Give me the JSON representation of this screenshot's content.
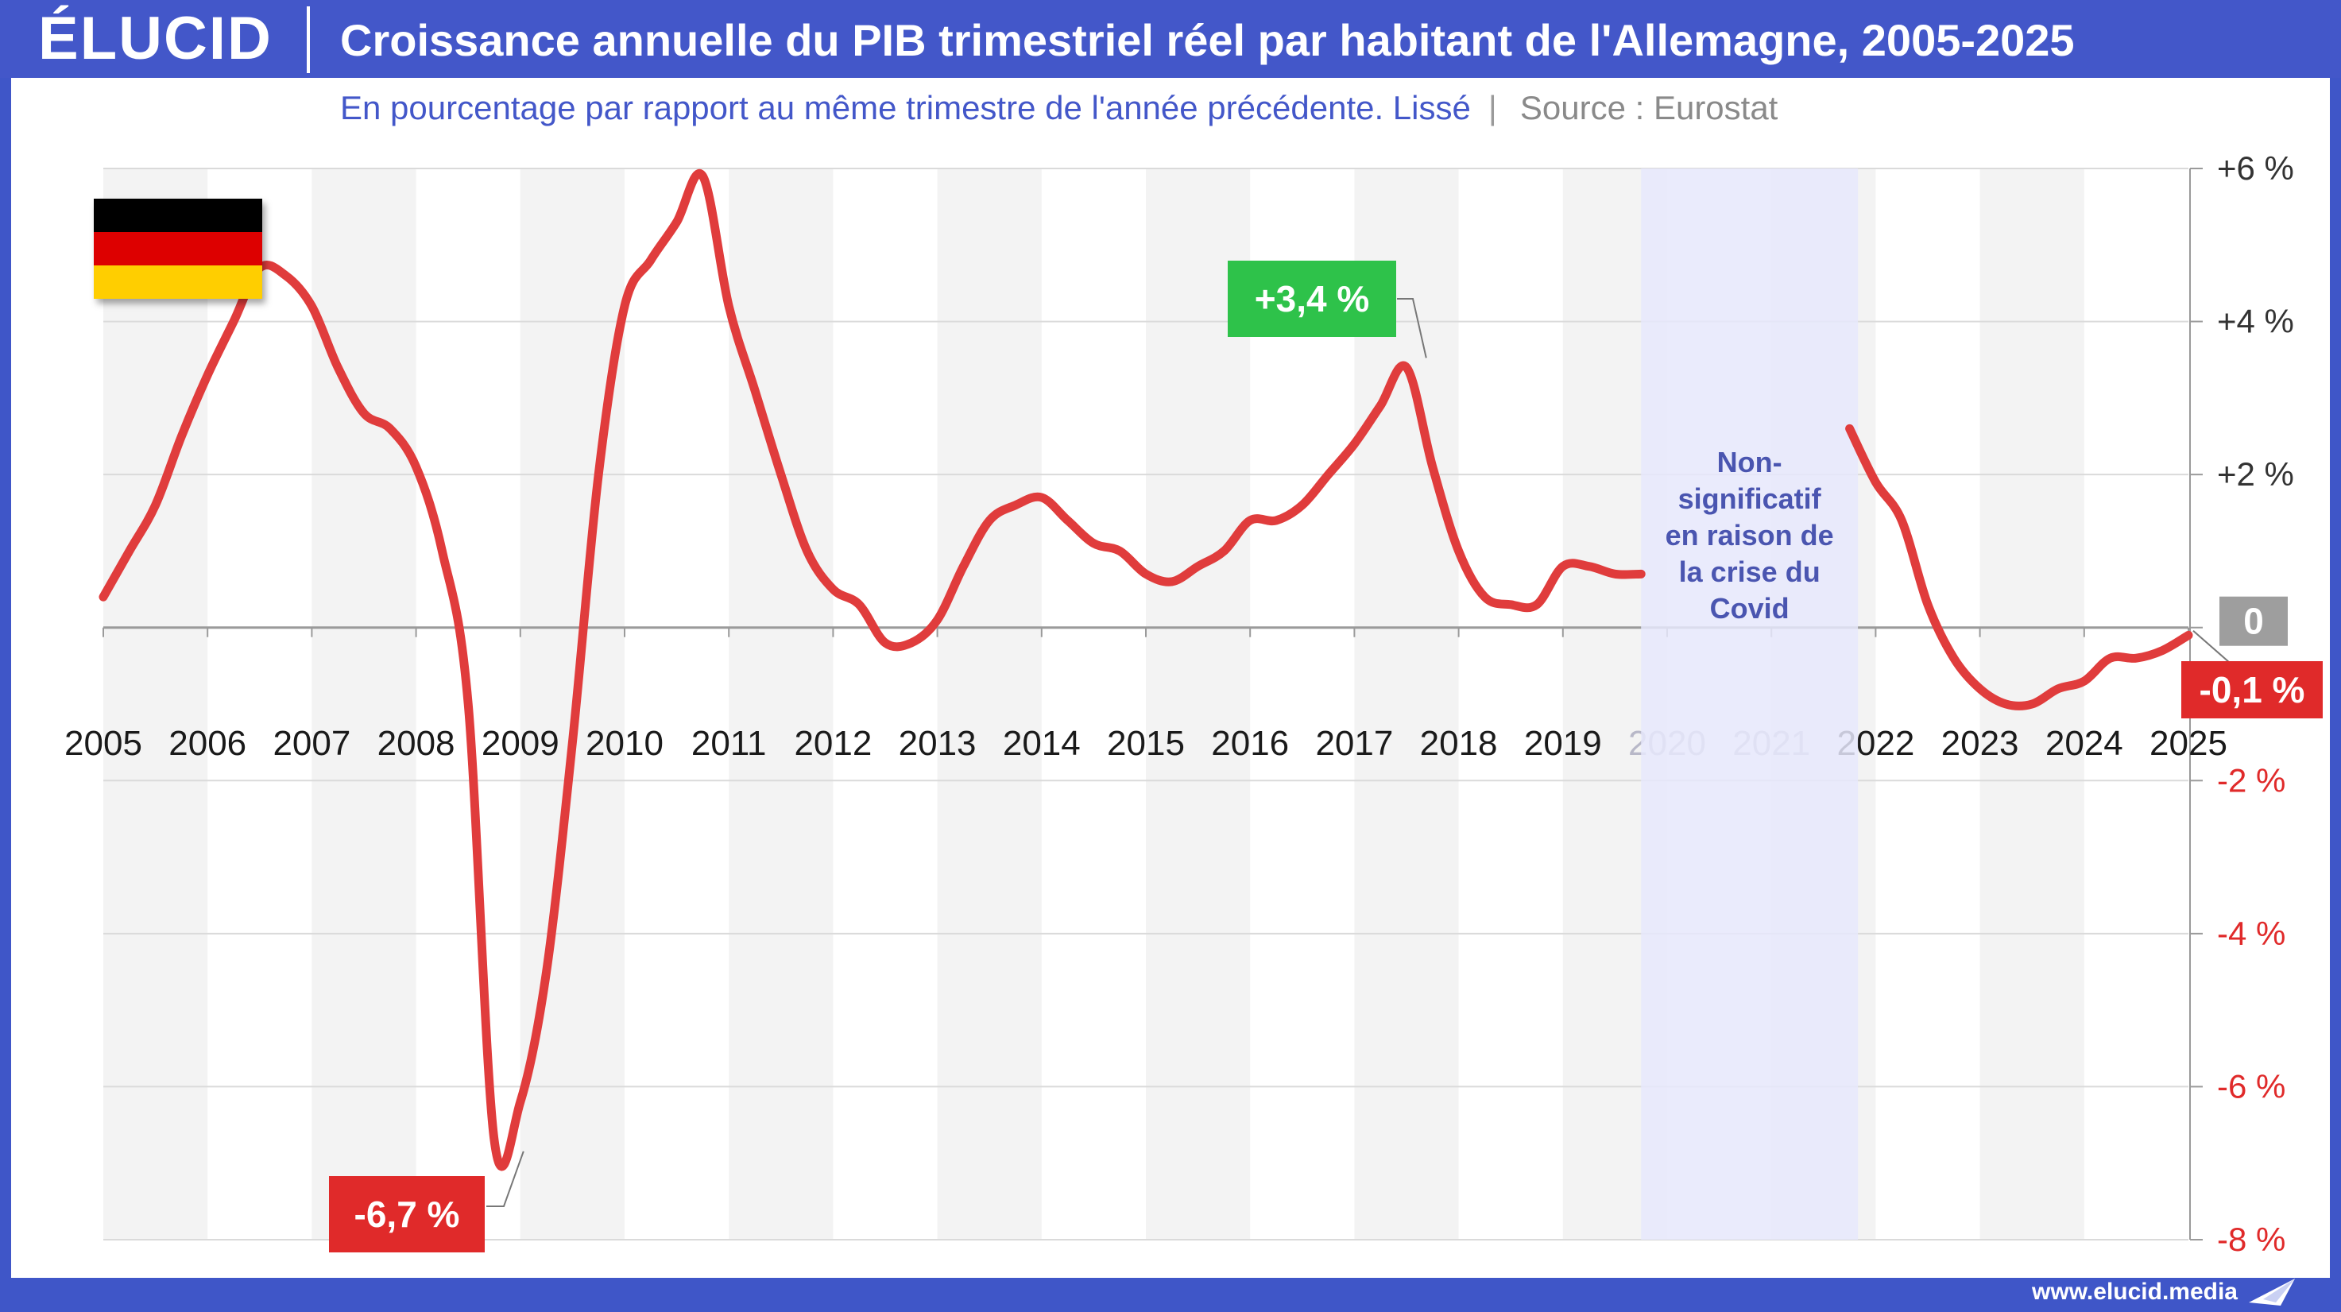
{
  "header": {
    "logo": "ÉLUCID",
    "title": "Croissance annuelle du PIB trimestriel réel par habitant de l'Allemagne, 2005-2025"
  },
  "footer": {
    "url": "www.elucid.media"
  },
  "colors": {
    "line": "#e03c3c",
    "positive_label": "#2ec24a",
    "negative_label": "#e02a2a",
    "zero_label": "#9e9e9e",
    "covid_band": "#e6e8fb",
    "alt_band": "#f3f3f3",
    "brand": "#4357c9",
    "flag": [
      "#000000",
      "#dd0000",
      "#ffce00"
    ]
  },
  "icons": {
    "flag": "germany-flag-icon",
    "footer": "paper-plane-icon"
  },
  "chart_data": {
    "type": "line",
    "title": "Croissance annuelle du PIB trimestriel réel par habitant de l'Allemagne, 2005-2025",
    "subtitle": "En pourcentage par rapport au même trimestre de l'année précédente. Lissé",
    "source": "Source : Eurostat",
    "xlabel": "",
    "ylabel": "",
    "x_ticks": [
      "2005",
      "2006",
      "2007",
      "2008",
      "2009",
      "2010",
      "2011",
      "2012",
      "2013",
      "2014",
      "2015",
      "2016",
      "2017",
      "2018",
      "2019",
      "2020",
      "2021",
      "2022",
      "2023",
      "2024",
      "2025"
    ],
    "y_ticks": [
      "+6 %",
      "+4 %",
      "+2 %",
      "0",
      "-2 %",
      "-4 %",
      "-6 %",
      "-8 %"
    ],
    "y_tick_values": [
      6,
      4,
      2,
      0,
      -2,
      -4,
      -6,
      -8
    ],
    "xlim": [
      2005,
      2025
    ],
    "ylim": [
      -8,
      6
    ],
    "grid": true,
    "legend": "none",
    "series": [
      {
        "segments": [
          {
            "x": [
              2005.0,
              2005.25,
              2005.5,
              2005.75,
              2006.0,
              2006.25,
              2006.5,
              2006.75,
              2007.0,
              2007.25,
              2007.5,
              2007.75,
              2008.0,
              2008.25,
              2008.5,
              2008.75,
              2009.0,
              2009.25,
              2009.5,
              2009.75,
              2010.0,
              2010.25,
              2010.5,
              2010.75,
              2011.0,
              2011.25,
              2011.5,
              2011.75,
              2012.0,
              2012.25,
              2012.5,
              2012.75,
              2013.0,
              2013.25,
              2013.5,
              2013.75,
              2014.0,
              2014.25,
              2014.5,
              2014.75,
              2015.0,
              2015.25,
              2015.5,
              2015.75,
              2016.0,
              2016.25,
              2016.5,
              2016.75,
              2017.0,
              2017.25,
              2017.5,
              2017.75,
              2018.0,
              2018.25,
              2018.5,
              2018.75,
              2019.0,
              2019.25,
              2019.5,
              2019.75
            ],
            "y": [
              0.4,
              1.0,
              1.6,
              2.5,
              3.3,
              4.0,
              4.7,
              4.6,
              4.2,
              3.4,
              2.8,
              2.6,
              2.1,
              1.0,
              -1.0,
              -6.7,
              -6.2,
              -4.5,
              -1.5,
              2.0,
              4.2,
              4.8,
              5.3,
              5.9,
              4.2,
              3.1,
              2.0,
              1.0,
              0.5,
              0.3,
              -0.2,
              -0.2,
              0.1,
              0.8,
              1.4,
              1.6,
              1.7,
              1.4,
              1.1,
              1.0,
              0.7,
              0.6,
              0.8,
              1.0,
              1.4,
              1.4,
              1.6,
              2.0,
              2.4,
              2.9,
              3.4,
              2.1,
              1.0,
              0.4,
              0.3,
              0.3,
              0.8,
              0.8,
              0.7,
              0.7
            ]
          },
          {
            "x": [
              2021.75,
              2022.0,
              2022.25,
              2022.5,
              2022.75,
              2023.0,
              2023.25,
              2023.5,
              2023.75,
              2024.0,
              2024.25,
              2024.5,
              2024.75,
              2025.0
            ],
            "y": [
              2.6,
              1.9,
              1.4,
              0.3,
              -0.4,
              -0.8,
              -1.0,
              -1.0,
              -0.8,
              -0.7,
              -0.4,
              -0.4,
              -0.3,
              -0.1
            ]
          }
        ]
      }
    ],
    "annotations": {
      "max": {
        "label": "+3,4 %",
        "x": 2017.75,
        "y": 3.4
      },
      "min": {
        "label": "-6,7 %",
        "x": 2009.0,
        "y": -6.7
      },
      "last": {
        "label": "-0,1 %",
        "x": 2025.0,
        "y": -0.1
      },
      "zero": {
        "label": "0"
      },
      "covid": {
        "lines": [
          "Non-",
          "significatif",
          "en raison de",
          "la crise du",
          "Covid"
        ],
        "x_start": 2019.75,
        "x_end": 2021.83
      }
    }
  }
}
